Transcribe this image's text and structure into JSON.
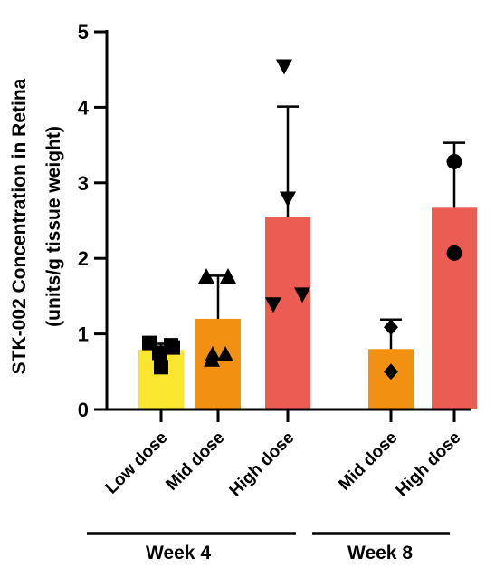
{
  "chart_data": {
    "type": "bar",
    "ylabel_line1": "STK-002 Concentration in Retina",
    "ylabel_line2": "(units/g tissue weight)",
    "ylim": [
      0,
      5
    ],
    "yticks": [
      0,
      1,
      2,
      3,
      4,
      5
    ],
    "ytick_labels": [
      "0",
      "1",
      "2",
      "3",
      "4",
      "5"
    ],
    "groups": [
      {
        "label": "Week 4",
        "members": [
          0,
          1,
          2
        ]
      },
      {
        "label": "Week 8",
        "members": [
          3,
          4
        ]
      }
    ],
    "bars": [
      {
        "category": "Low dose",
        "group": "Week 4",
        "mean": 0.79,
        "error_upper": 0.87,
        "color": "#FBE62F",
        "marker": "square",
        "points": [
          0.88,
          0.85,
          0.82,
          0.75,
          0.56
        ]
      },
      {
        "category": "Mid dose",
        "group": "Week 4",
        "mean": 1.2,
        "error_upper": 1.77,
        "color": "#F29111",
        "marker": "triangle-up",
        "points": [
          1.75,
          1.75,
          0.72,
          0.72,
          0.65
        ]
      },
      {
        "category": "High dose",
        "group": "Week 4",
        "mean": 2.55,
        "error_upper": 4.01,
        "color": "#EB5C52",
        "marker": "triangle-down",
        "points": [
          4.55,
          2.8,
          1.53,
          1.4
        ]
      },
      {
        "category": "Mid dose",
        "group": "Week 8",
        "mean": 0.8,
        "error_upper": 1.19,
        "color": "#F29111",
        "marker": "diamond",
        "points": [
          1.09,
          0.5
        ]
      },
      {
        "category": "High dose",
        "group": "Week 8",
        "mean": 2.67,
        "error_upper": 3.53,
        "color": "#EB5C52",
        "marker": "circle",
        "points": [
          3.28,
          2.07
        ]
      }
    ],
    "legend": "none",
    "grid": false
  }
}
